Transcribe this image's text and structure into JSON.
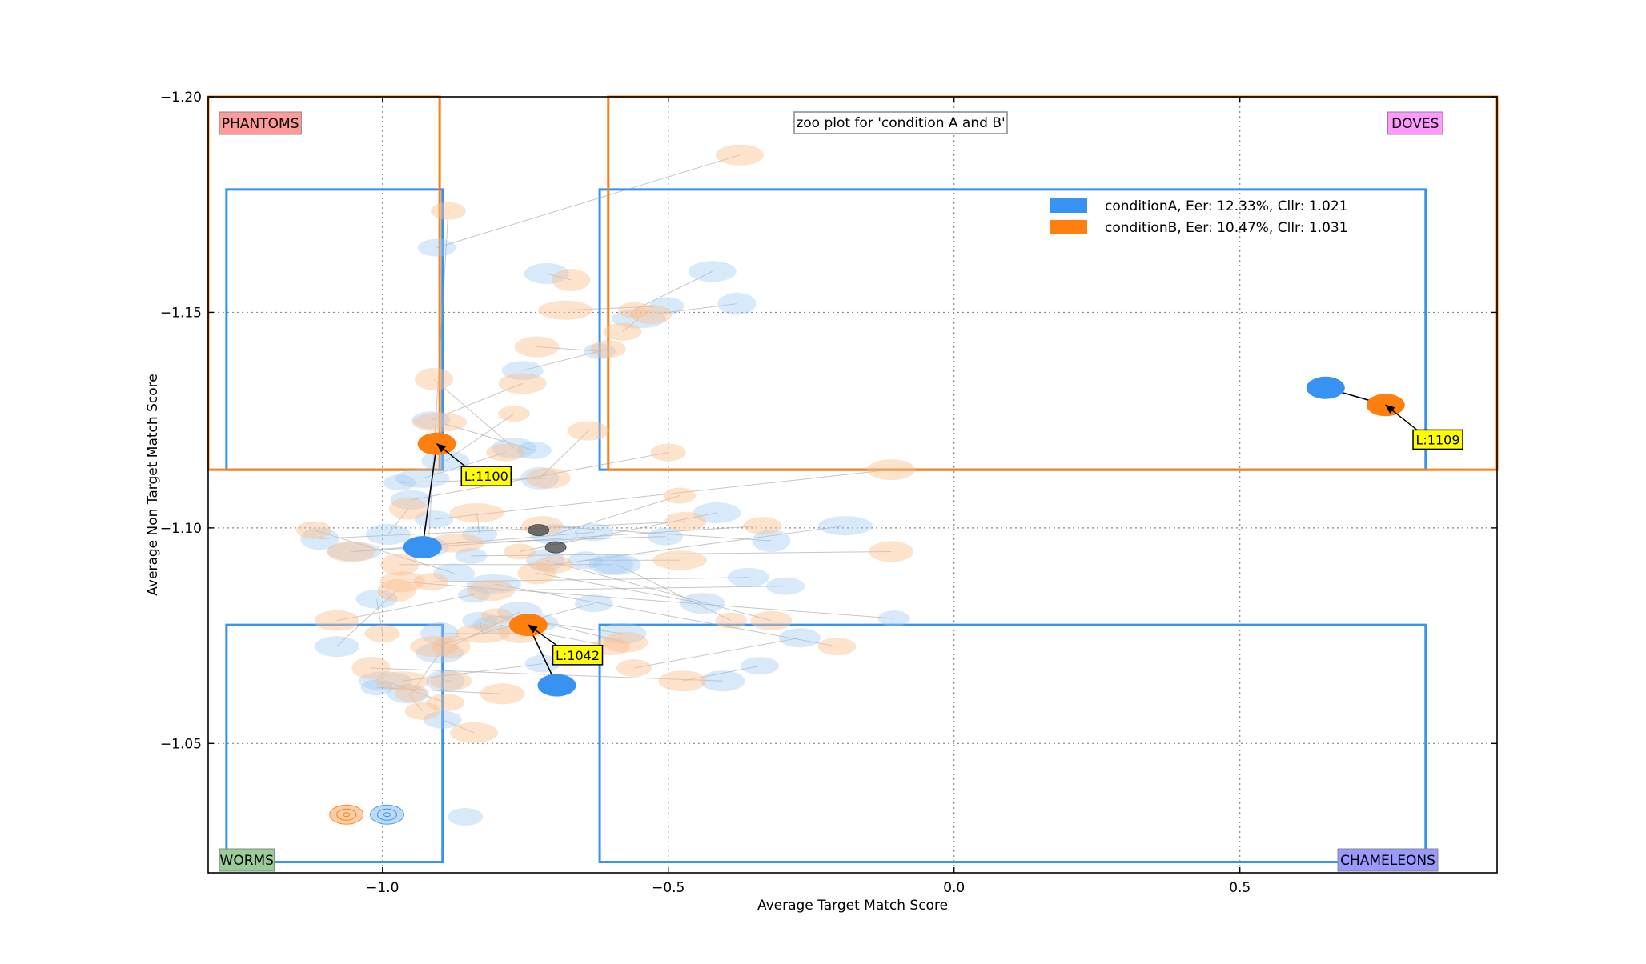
{
  "chart_data": {
    "type": "scatter",
    "title": "zoo plot for 'condition A and B'",
    "xlabel": "Average Target Match Score",
    "ylabel": "Average Non Target Match Score",
    "xlim": [
      -1.305,
      0.95
    ],
    "ylim": [
      -1.02,
      -1.2
    ],
    "y_axis_inverted": true,
    "grid": true,
    "legend_position": "top-right",
    "x_ticks": [
      {
        "value": -1.0,
        "label": "−1.0"
      },
      {
        "value": -0.5,
        "label": "−0.5"
      },
      {
        "value": 0.0,
        "label": "0.0"
      },
      {
        "value": 0.5,
        "label": "0.5"
      }
    ],
    "y_ticks": [
      {
        "value": -1.2,
        "label": "−1.20"
      },
      {
        "value": -1.15,
        "label": "−1.15"
      },
      {
        "value": -1.1,
        "label": "−1.10"
      },
      {
        "value": -1.05,
        "label": "−1.05"
      }
    ],
    "zones": [
      {
        "name": "PHANTOMS",
        "color": "#ff9a9a",
        "corner": "top-left"
      },
      {
        "name": "DOVES",
        "color": "#ff99ff",
        "corner": "top-right"
      },
      {
        "name": "WORMS",
        "color": "#99cc99",
        "corner": "bottom-left"
      },
      {
        "name": "CHAMELEONS",
        "color": "#9999ff",
        "corner": "bottom-right"
      }
    ],
    "quadrant_boxes": [
      {
        "series": "conditionA",
        "x_low": -0.895,
        "x_high": -0.62,
        "y_low": -1.0775,
        "y_high": -1.1135,
        "y_top": -1.1785,
        "y_bottom": -1.0225,
        "x_left": -1.273,
        "x_right": 0.825
      },
      {
        "series": "conditionB",
        "x_low": -0.9,
        "x_high": -0.605,
        "y_low": -1.0385,
        "y_high": -1.1135,
        "y_top": -1.2,
        "y_bottom": -1.0385,
        "x_left": -1.305,
        "x_right": 0.95
      }
    ],
    "series": [
      {
        "name": "conditionA, Eer: 12.33%, Cllr: 1.021",
        "color": "#3792f1",
        "points": [
          [
            -0.92,
            -1.0955
          ],
          [
            -0.905,
            -1.165
          ],
          [
            -0.713,
            -1.159
          ],
          [
            -0.503,
            -1.1515
          ],
          [
            -0.423,
            -1.1595
          ],
          [
            -0.38,
            -1.152
          ],
          [
            -0.552,
            -1.1485
          ],
          [
            -0.62,
            -1.141
          ],
          [
            -0.755,
            -1.1365
          ],
          [
            -0.915,
            -1.125
          ],
          [
            -0.77,
            -1.1185
          ],
          [
            -0.735,
            -1.118
          ],
          [
            -0.89,
            -1.1155
          ],
          [
            -0.725,
            -1.1115
          ],
          [
            -0.93,
            -1.1115
          ],
          [
            -0.97,
            -1.1105
          ],
          [
            -0.95,
            -1.1065
          ],
          [
            -0.91,
            -1.102
          ],
          [
            -0.99,
            -1.0985
          ],
          [
            -0.83,
            -1.0985
          ],
          [
            -0.7,
            -1.0985
          ],
          [
            -1.11,
            -1.0975
          ],
          [
            -1.05,
            -1.0945
          ],
          [
            -0.845,
            -1.0935
          ],
          [
            -0.875,
            -1.0895
          ],
          [
            -0.63,
            -1.099
          ],
          [
            -0.6,
            -1.0915
          ],
          [
            -0.505,
            -1.098
          ],
          [
            -0.415,
            -1.1035
          ],
          [
            -0.32,
            -1.097
          ],
          [
            -0.19,
            -1.1005
          ],
          [
            -0.105,
            -1.079
          ],
          [
            -0.36,
            -1.0885
          ],
          [
            -0.295,
            -1.0865
          ],
          [
            -0.44,
            -1.0825
          ],
          [
            -0.645,
            -1.0925
          ],
          [
            -0.59,
            -1.0915
          ],
          [
            -0.715,
            -1.0925
          ],
          [
            -0.805,
            -1.087
          ],
          [
            -0.84,
            -1.0845
          ],
          [
            -1.01,
            -1.0835
          ],
          [
            -0.63,
            -1.0825
          ],
          [
            -0.76,
            -1.0805
          ],
          [
            -0.83,
            -1.0785
          ],
          [
            -0.58,
            -1.0755
          ],
          [
            -0.9,
            -1.0755
          ],
          [
            -0.795,
            -1.0775
          ],
          [
            -0.72,
            -1.078
          ],
          [
            -0.27,
            -1.0745
          ],
          [
            -0.34,
            -1.068
          ],
          [
            -0.405,
            -1.0645
          ],
          [
            -0.72,
            -1.0685
          ],
          [
            -0.9,
            -1.071
          ],
          [
            -0.89,
            -1.0645
          ],
          [
            -0.995,
            -1.0645
          ],
          [
            -1.01,
            -1.063
          ],
          [
            -0.955,
            -1.0615
          ],
          [
            -0.895,
            -1.0555
          ],
          [
            -1.08,
            -1.0725
          ],
          [
            -0.855,
            -1.033
          ]
        ]
      },
      {
        "name": "conditionB, Eer: 10.47%, Cllr: 1.031",
        "color": "#ff7f0e",
        "points": [
          [
            -0.885,
            -1.1735
          ],
          [
            -0.375,
            -1.1865
          ],
          [
            -0.67,
            -1.1575
          ],
          [
            -0.68,
            -1.1505
          ],
          [
            -0.56,
            -1.1505
          ],
          [
            -0.53,
            -1.1495
          ],
          [
            -0.58,
            -1.1455
          ],
          [
            -0.73,
            -1.142
          ],
          [
            -0.605,
            -1.1415
          ],
          [
            -0.755,
            -1.1335
          ],
          [
            -0.91,
            -1.1345
          ],
          [
            -0.9,
            -1.1245
          ],
          [
            -0.77,
            -1.1265
          ],
          [
            -0.64,
            -1.1225
          ],
          [
            -0.785,
            -1.1175
          ],
          [
            -0.71,
            -1.1115
          ],
          [
            -0.5,
            -1.1175
          ],
          [
            -0.11,
            -1.1135
          ],
          [
            -0.955,
            -1.1045
          ],
          [
            -0.835,
            -1.1035
          ],
          [
            -0.48,
            -1.1075
          ],
          [
            -0.47,
            -1.1015
          ],
          [
            -0.335,
            -1.1005
          ],
          [
            -0.11,
            -1.0945
          ],
          [
            -1.12,
            -1.0995
          ],
          [
            -1.055,
            -1.0945
          ],
          [
            -0.97,
            -1.0915
          ],
          [
            -0.87,
            -1.0965
          ],
          [
            -0.76,
            -1.0945
          ],
          [
            -0.72,
            -1.1005
          ],
          [
            -0.7,
            -1.0915
          ],
          [
            -0.965,
            -1.0875
          ],
          [
            -0.915,
            -1.0875
          ],
          [
            -0.81,
            -1.0855
          ],
          [
            -0.73,
            -1.0895
          ],
          [
            -0.48,
            -1.0925
          ],
          [
            -0.39,
            -1.0785
          ],
          [
            -0.32,
            -1.0785
          ],
          [
            -0.205,
            -1.0725
          ],
          [
            -1.08,
            -1.0785
          ],
          [
            -1.0,
            -1.0755
          ],
          [
            -0.91,
            -1.0725
          ],
          [
            -0.88,
            -1.0725
          ],
          [
            -0.825,
            -1.0755
          ],
          [
            -0.8,
            -1.0795
          ],
          [
            -0.76,
            -1.0755
          ],
          [
            -0.6,
            -1.0725
          ],
          [
            -0.575,
            -1.0735
          ],
          [
            -0.56,
            -1.0675
          ],
          [
            -0.475,
            -1.0645
          ],
          [
            -1.02,
            -1.0675
          ],
          [
            -0.965,
            -1.0645
          ],
          [
            -0.95,
            -1.0615
          ],
          [
            -0.88,
            -1.0645
          ],
          [
            -0.89,
            -1.0595
          ],
          [
            -0.79,
            -1.0615
          ],
          [
            -0.93,
            -1.0575
          ],
          [
            -0.84,
            -1.0525
          ],
          [
            -0.975,
            -1.0855
          ]
        ]
      }
    ],
    "highlighted": [
      {
        "label": "L:1100",
        "a": [
          -0.93,
          -1.0955
        ],
        "b": [
          -0.905,
          -1.1195
        ],
        "label_at": [
          -0.855,
          -1.112
        ]
      },
      {
        "label": "L:1042",
        "a": [
          -0.695,
          -1.0635
        ],
        "b": [
          -0.745,
          -1.0775
        ],
        "label_at": [
          -0.695,
          -1.0705
        ]
      },
      {
        "label": "L:1109",
        "a": [
          0.65,
          -1.1325
        ],
        "b": [
          0.755,
          -1.1285
        ],
        "label_at": [
          0.81,
          -1.1205
        ]
      }
    ],
    "grey_points": [
      [
        -0.727,
        -1.0995
      ],
      [
        -0.697,
        -1.0955
      ]
    ],
    "small_markers": [
      {
        "series": "conditionB",
        "x": -1.063,
        "y": -1.0335
      },
      {
        "series": "conditionA",
        "x": -0.992,
        "y": -1.0335
      }
    ]
  }
}
